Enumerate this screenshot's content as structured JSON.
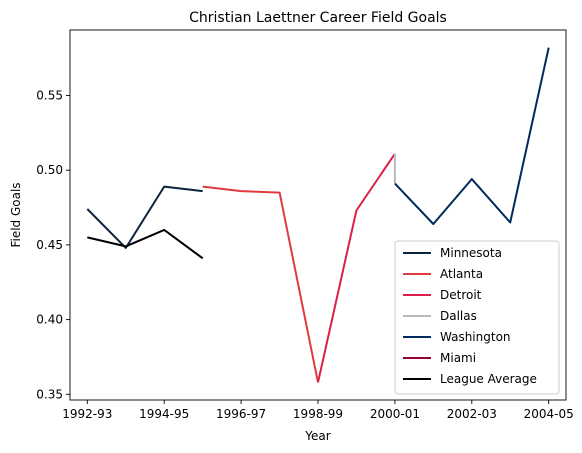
{
  "chart_data": {
    "type": "line",
    "title": "Christian Laettner Career Field Goals",
    "xlabel": "Year",
    "ylabel": "Field Goals",
    "x_tick_labels": [
      "1992-93",
      "1994-95",
      "1996-97",
      "1998-99",
      "2000-01",
      "2002-03",
      "2004-05"
    ],
    "y_ticks": [
      0.35,
      0.4,
      0.45,
      0.5,
      0.55
    ],
    "y_tick_labels": [
      "0.35",
      "0.40",
      "0.45",
      "0.50",
      "0.55"
    ],
    "grid": false,
    "legend_position": "lower-right",
    "series": [
      {
        "name": "Minnesota",
        "color": "#0c2340",
        "points": [
          {
            "x": "1992-93",
            "y": 0.474
          },
          {
            "x": "1993-94",
            "y": 0.448
          },
          {
            "x": "1994-95",
            "y": 0.489
          },
          {
            "x": "1995-96",
            "y": 0.486
          }
        ]
      },
      {
        "name": "Atlanta",
        "color": "#e03a3e",
        "points": [
          {
            "x": "1995-96",
            "y": 0.489
          },
          {
            "x": "1996-97",
            "y": 0.486
          },
          {
            "x": "1997-98",
            "y": 0.485
          },
          {
            "x": "1998-99",
            "y": 0.358
          }
        ]
      },
      {
        "name": "Detroit",
        "color": "#dc1f4a",
        "points": [
          {
            "x": "1998-99",
            "y": 0.358
          },
          {
            "x": "1999-00",
            "y": 0.473
          },
          {
            "x": "2000-01",
            "y": 0.511
          }
        ]
      },
      {
        "name": "Dallas",
        "color": "#bbbbbb",
        "points": [
          {
            "x": "2000-01",
            "y": 0.511
          },
          {
            "x": "2000-01",
            "y": 0.491
          }
        ]
      },
      {
        "name": "Washington",
        "color": "#002b5c",
        "points": [
          {
            "x": "2000-01",
            "y": 0.491
          },
          {
            "x": "2001-02",
            "y": 0.464
          },
          {
            "x": "2002-03",
            "y": 0.494
          },
          {
            "x": "2003-04",
            "y": 0.465
          },
          {
            "x": "2004-05",
            "y": 0.582
          }
        ]
      },
      {
        "name": "Miami",
        "color": "#98002e",
        "points": []
      },
      {
        "name": "League Average",
        "color": "#000000",
        "points": [
          {
            "x": "1992-93",
            "y": 0.455
          },
          {
            "x": "1993-94",
            "y": 0.449
          },
          {
            "x": "1994-95",
            "y": 0.46
          },
          {
            "x": "1995-96",
            "y": 0.441
          }
        ]
      }
    ]
  }
}
